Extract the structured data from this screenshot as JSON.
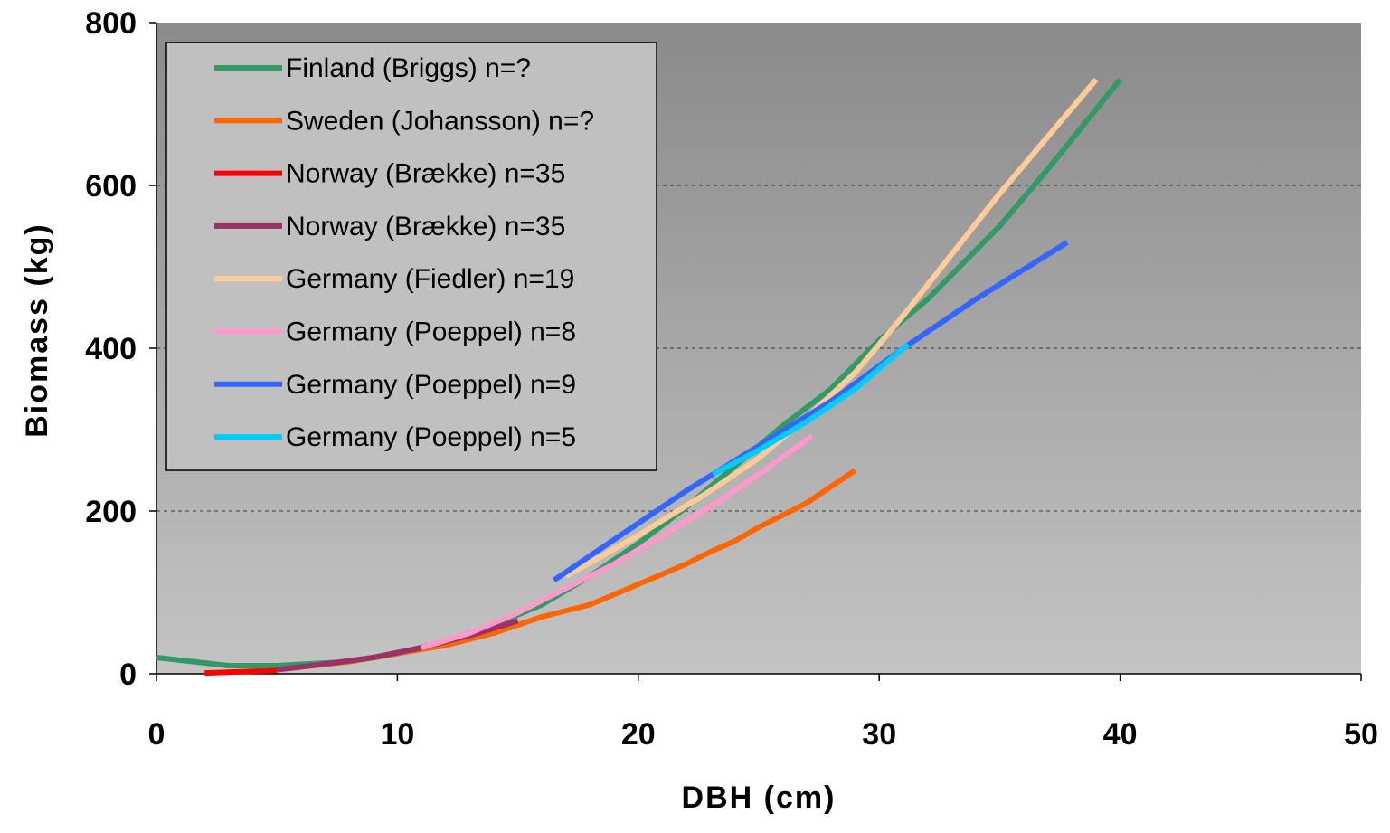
{
  "chart_data": {
    "type": "line",
    "xlabel": "DBH (cm)",
    "ylabel": "Biomass (kg)",
    "xlim": [
      0,
      50
    ],
    "ylim": [
      0,
      800
    ],
    "xticks": [
      0,
      10,
      20,
      30,
      40,
      50
    ],
    "yticks": [
      0,
      200,
      400,
      600,
      800
    ],
    "grid": "horizontal dashed",
    "legend_position": "top-left",
    "series": [
      {
        "name": "Finland (Briggs) n=?",
        "color": "#339966",
        "x": [
          0,
          3,
          5,
          8,
          10,
          12,
          14,
          16,
          18,
          20,
          22,
          24,
          26,
          28,
          30,
          32,
          35,
          37,
          40
        ],
        "y": [
          20,
          10,
          10,
          15,
          25,
          40,
          60,
          85,
          120,
          160,
          205,
          255,
          305,
          350,
          410,
          460,
          550,
          620,
          730
        ]
      },
      {
        "name": "Sweden (Johansson) n=?",
        "color": "#FF6600",
        "x": [
          5,
          8,
          10,
          12,
          14,
          16,
          18,
          20,
          22,
          23,
          24,
          25,
          27,
          29
        ],
        "y": [
          5,
          15,
          25,
          35,
          50,
          70,
          85,
          110,
          135,
          150,
          163,
          180,
          210,
          250
        ]
      },
      {
        "name": "Norway (Brække) n=35",
        "color": "#FF0000",
        "x": [
          2,
          3,
          4,
          5
        ],
        "y": [
          1,
          2,
          3,
          4
        ]
      },
      {
        "name": "Norway (Brække) n=35",
        "color": "#993366",
        "x": [
          5,
          7,
          9,
          11,
          13,
          15
        ],
        "y": [
          5,
          12,
          20,
          32,
          47,
          65
        ]
      },
      {
        "name": "Germany (Fiedler) n=19",
        "color": "#FFCC99",
        "x": [
          17,
          20,
          23,
          25,
          27,
          29,
          31,
          33,
          35,
          37,
          39
        ],
        "y": [
          120,
          170,
          225,
          265,
          315,
          370,
          440,
          515,
          590,
          660,
          730
        ]
      },
      {
        "name": "Germany (Poeppel) n=8",
        "color": "#FF99CC",
        "x": [
          11,
          13,
          15,
          17,
          19,
          21,
          23,
          25,
          27.2
        ],
        "y": [
          32,
          50,
          75,
          105,
          135,
          170,
          205,
          245,
          292
        ]
      },
      {
        "name": "Germany (Poeppel) n=9",
        "color": "#3366FF",
        "x": [
          16.5,
          19,
          22,
          25,
          28,
          31,
          34,
          37.8
        ],
        "y": [
          115,
          165,
          225,
          280,
          335,
          400,
          460,
          530
        ]
      },
      {
        "name": "Germany (Poeppel) n=5",
        "color": "#00CCFF",
        "x": [
          23.1,
          25,
          27,
          29,
          31.2
        ],
        "y": [
          245,
          275,
          310,
          350,
          405
        ]
      }
    ]
  }
}
